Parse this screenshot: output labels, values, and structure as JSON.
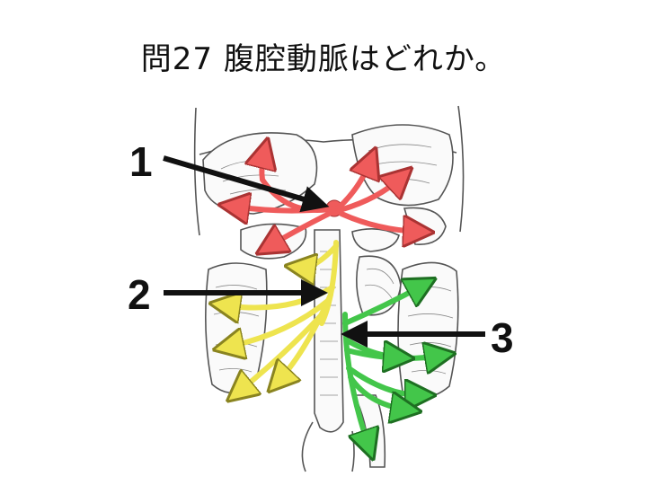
{
  "title": "問27 腹腔動脈はどれか。",
  "labels": {
    "label_1": "1",
    "label_2": "2",
    "label_3": "3"
  },
  "colors": {
    "celiac_trunk": "#ef5b5b",
    "superior_mesenteric": "#eee44f",
    "inferior_mesenteric": "#43c64a",
    "pointer_arrow": "#111111"
  },
  "icons": [
    "anatomical-abdomen-illustration",
    "pointer-arrow"
  ]
}
